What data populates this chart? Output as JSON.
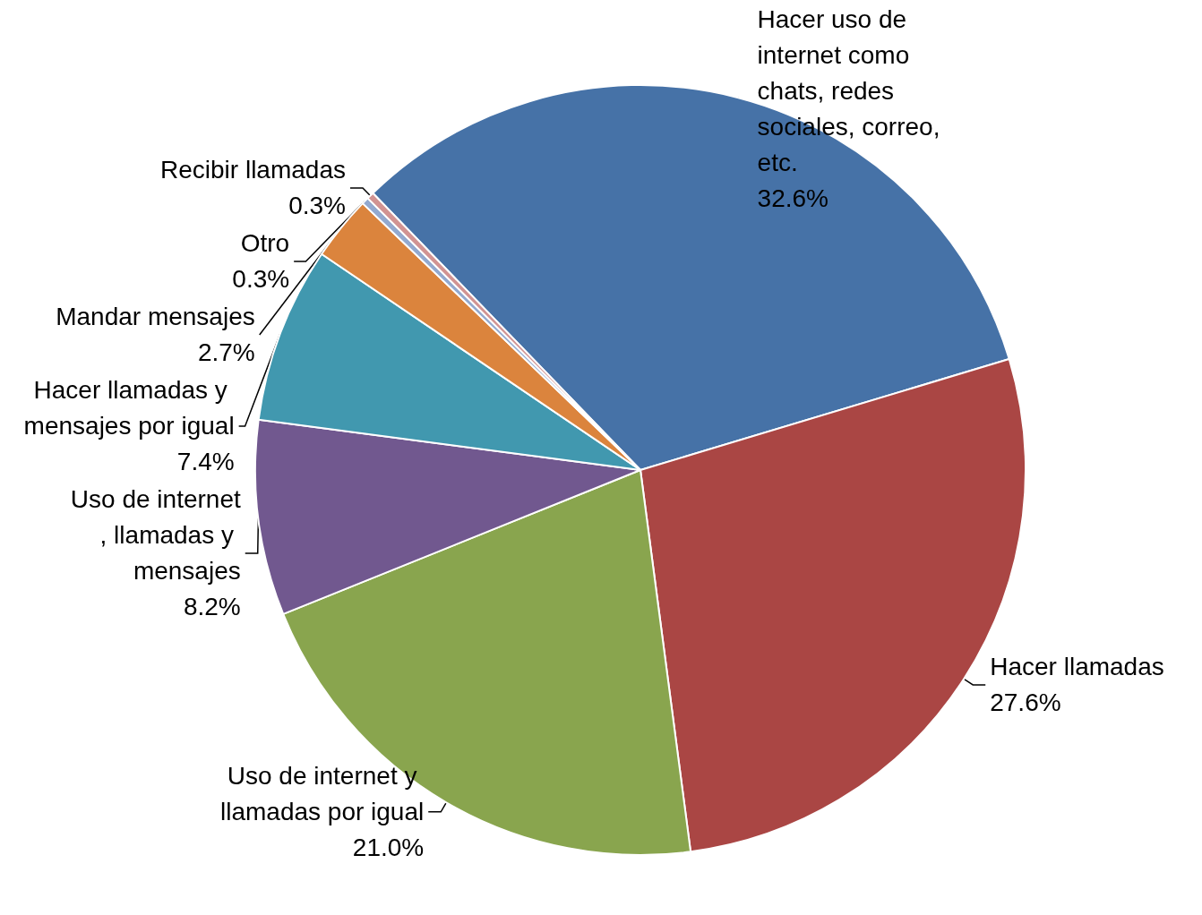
{
  "chart_data": {
    "type": "pie",
    "categories": [
      "Hacer uso de internet como chats, redes sociales, correo, etc.",
      "Hacer llamadas",
      "Uso de internet y llamadas por igual",
      "Uso de internet, llamadas y mensajes",
      "Hacer llamadas y mensajes por igual",
      "Mandar mensajes",
      "Otro",
      "Recibir llamadas"
    ],
    "values": [
      32.6,
      27.6,
      21.0,
      8.2,
      7.4,
      2.7,
      0.3,
      0.3
    ],
    "value_labels": [
      "32.6%",
      "27.6%",
      "21.0%",
      "8.2%",
      "7.4%",
      "2.7%",
      "0.3%",
      "0.3%"
    ],
    "colors": [
      "#4672a7",
      "#aa4644",
      "#89a54e",
      "#71588f",
      "#4198af",
      "#db843d",
      "#93a9cf",
      "#d19392"
    ],
    "legend": false
  }
}
